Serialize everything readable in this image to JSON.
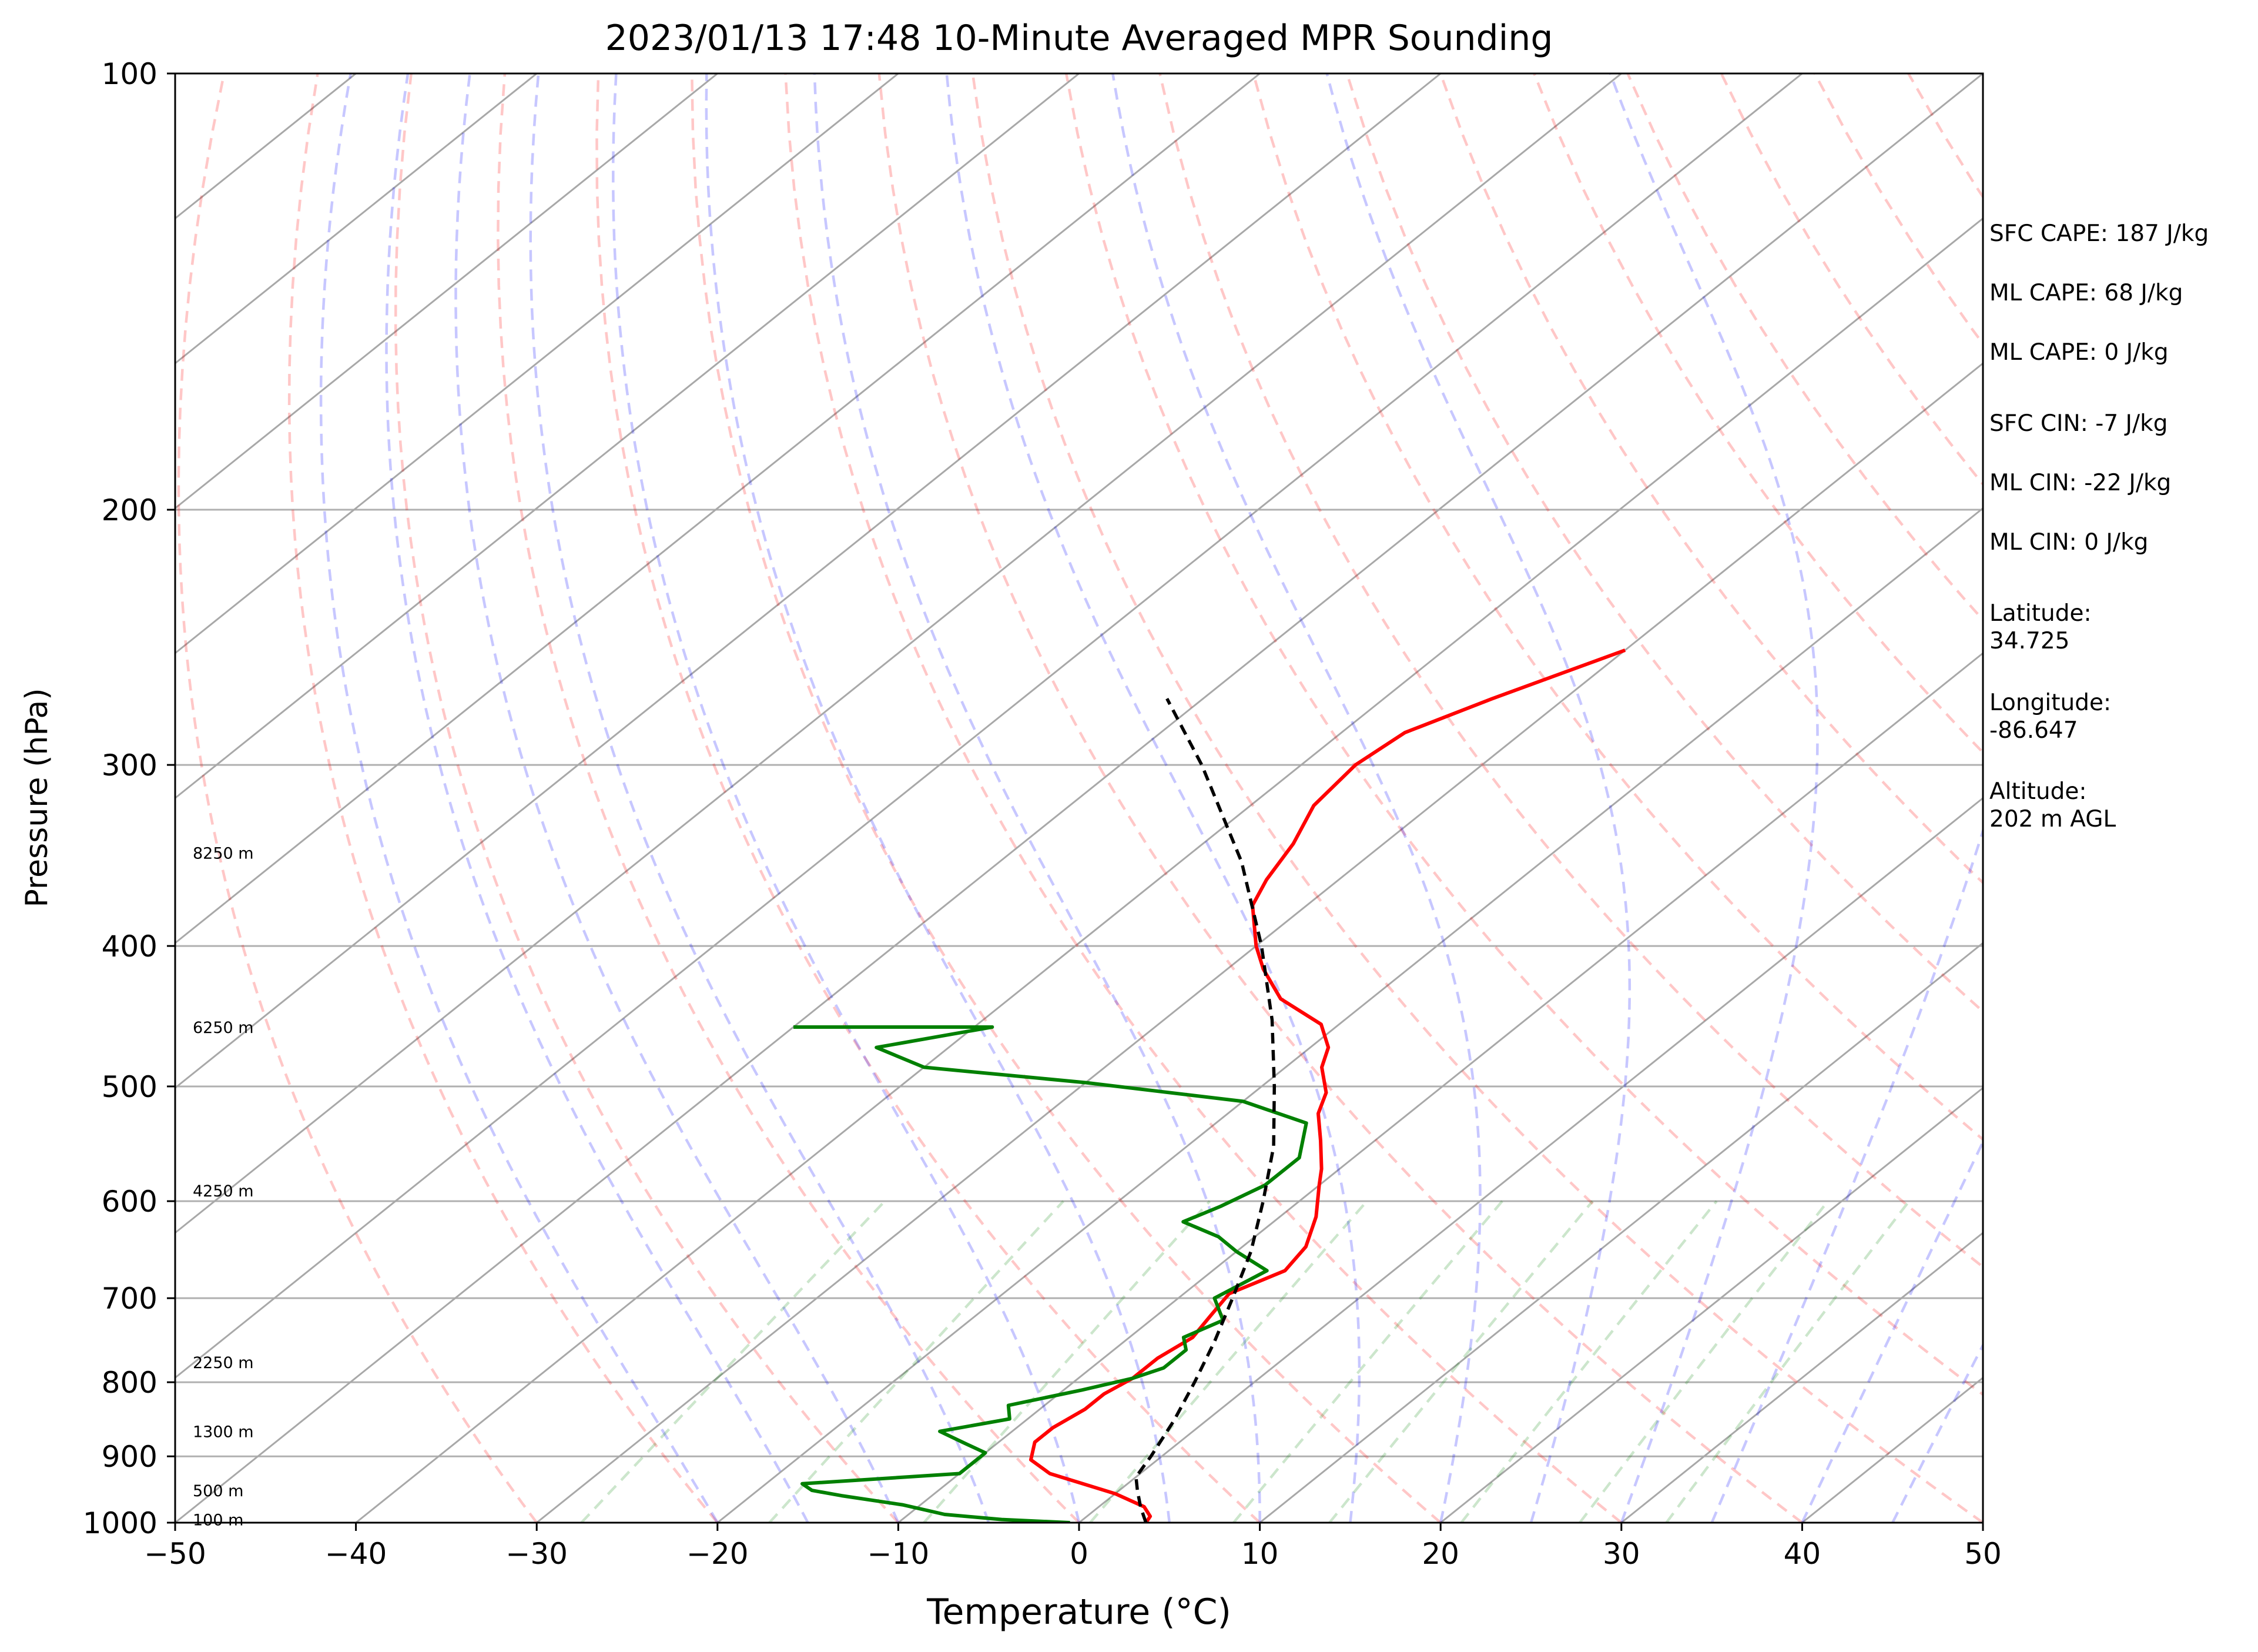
{
  "chart_data": {
    "type": "line",
    "title": "2023/01/13 17:48 10-Minute Averaged MPR Sounding",
    "xlabel": "Temperature (°C)",
    "ylabel": "Pressure (hPa)",
    "x_range": [
      -50,
      50
    ],
    "y_range": [
      1000,
      100
    ],
    "y_scale": "log",
    "skew": "skew-T",
    "grid": true,
    "x_ticks": [
      "−50",
      "−40",
      "−30",
      "−20",
      "−10",
      "0",
      "10",
      "20",
      "30",
      "40",
      "50"
    ],
    "y_ticks": [
      "100",
      "200",
      "300",
      "400",
      "500",
      "600",
      "700",
      "800",
      "900",
      "1000"
    ],
    "height_labels": [
      {
        "text": "8250 m",
        "p": 345
      },
      {
        "text": "6250 m",
        "p": 455
      },
      {
        "text": "4250 m",
        "p": 590
      },
      {
        "text": "2250 m",
        "p": 775
      },
      {
        "text": "1300 m",
        "p": 865
      },
      {
        "text": "500 m",
        "p": 950
      },
      {
        "text": "100 m",
        "p": 995
      }
    ],
    "series": [
      {
        "role": "temperature",
        "color": "#ff0000",
        "points": [
          [
            3.7,
            1000
          ],
          [
            3.5,
            990
          ],
          [
            2.5,
            975
          ],
          [
            0,
            955
          ],
          [
            -5,
            925
          ],
          [
            -7,
            905
          ],
          [
            -8,
            880
          ],
          [
            -8,
            860
          ],
          [
            -7.5,
            835
          ],
          [
            -7.5,
            815
          ],
          [
            -7,
            795
          ],
          [
            -7,
            770
          ],
          [
            -6.5,
            745
          ],
          [
            -7,
            720
          ],
          [
            -7.5,
            695
          ],
          [
            -6,
            670
          ],
          [
            -6.5,
            645
          ],
          [
            -8,
            615
          ],
          [
            -10,
            585
          ],
          [
            -11,
            570
          ],
          [
            -13,
            545
          ],
          [
            -15,
            522
          ],
          [
            -16,
            505
          ],
          [
            -18,
            485
          ],
          [
            -19,
            470
          ],
          [
            -21,
            453
          ],
          [
            -25,
            435
          ],
          [
            -28,
            415
          ],
          [
            -30,
            400
          ],
          [
            -33,
            375
          ],
          [
            -34,
            360
          ],
          [
            -35,
            340
          ],
          [
            -36.5,
            320
          ],
          [
            -37,
            300
          ],
          [
            -36.5,
            285
          ],
          [
            -34,
            270
          ],
          [
            -30,
            250
          ]
        ]
      },
      {
        "role": "dewpoint",
        "color": "#008000",
        "points": [
          [
            -0.5,
            1000
          ],
          [
            -4.5,
            995
          ],
          [
            -8,
            987
          ],
          [
            -11,
            972
          ],
          [
            -15,
            958
          ],
          [
            -17,
            950
          ],
          [
            -18,
            940
          ],
          [
            -10,
            925
          ],
          [
            -10,
            910
          ],
          [
            -10,
            895
          ],
          [
            -12,
            880
          ],
          [
            -14,
            865
          ],
          [
            -11,
            848
          ],
          [
            -12,
            830
          ],
          [
            -9,
            810
          ],
          [
            -7,
            795
          ],
          [
            -6,
            782
          ],
          [
            -6,
            760
          ],
          [
            -7,
            745
          ],
          [
            -6,
            725
          ],
          [
            -8,
            700
          ],
          [
            -7,
            670
          ],
          [
            -10,
            650
          ],
          [
            -12,
            635
          ],
          [
            -15,
            620
          ],
          [
            -14,
            605
          ],
          [
            -13,
            585
          ],
          [
            -13,
            560
          ],
          [
            -15,
            530
          ],
          [
            -20,
            512
          ],
          [
            -30,
            497
          ],
          [
            -40,
            485
          ],
          [
            -44,
            470
          ],
          [
            -39,
            455
          ],
          [
            -50,
            455
          ]
        ]
      },
      {
        "role": "parcel",
        "color": "#000000",
        "points": [
          [
            3.7,
            1000
          ],
          [
            2.3,
            975
          ],
          [
            1,
            950
          ],
          [
            0,
            930
          ],
          [
            -0.6,
            900
          ],
          [
            -1.8,
            850
          ],
          [
            -3.3,
            800
          ],
          [
            -5,
            750
          ],
          [
            -7,
            700
          ],
          [
            -9.2,
            650
          ],
          [
            -12,
            600
          ],
          [
            -15.2,
            550
          ],
          [
            -19.3,
            500
          ],
          [
            -24,
            450
          ],
          [
            -29.7,
            400
          ],
          [
            -36.6,
            350
          ],
          [
            -45.5,
            300
          ],
          [
            -52,
            270
          ]
        ]
      }
    ]
  },
  "side_panel": {
    "sfc_cape": "SFC CAPE: 187 J/kg",
    "ml_cape_1": "ML CAPE: 68 J/kg",
    "ml_cape_2": "ML CAPE: 0 J/kg",
    "sfc_cin": "SFC CIN: -7 J/kg",
    "ml_cin_1": "ML CIN: -22 J/kg",
    "ml_cin_2": "ML CIN: 0 J/kg",
    "latitude_label": "Latitude:",
    "latitude_value": "34.725",
    "longitude_label": "Longitude:",
    "longitude_value": "-86.647",
    "altitude_label": "Altitude:",
    "altitude_value": "202 m AGL"
  }
}
